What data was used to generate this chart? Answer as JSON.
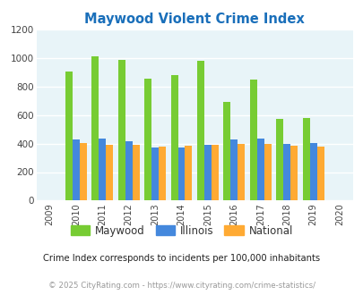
{
  "title": "Maywood Violent Crime Index",
  "years": [
    2009,
    2010,
    2011,
    2012,
    2013,
    2014,
    2015,
    2016,
    2017,
    2018,
    2019,
    2020
  ],
  "maywood": [
    null,
    905,
    1010,
    985,
    855,
    878,
    978,
    690,
    848,
    575,
    580,
    null
  ],
  "illinois": [
    null,
    430,
    432,
    415,
    375,
    375,
    393,
    430,
    438,
    400,
    405,
    null
  ],
  "national": [
    null,
    403,
    390,
    393,
    378,
    385,
    394,
    400,
    400,
    382,
    380,
    null
  ],
  "colors": {
    "maywood": "#77cc33",
    "illinois": "#4488dd",
    "national": "#ffaa33"
  },
  "ylim": [
    0,
    1200
  ],
  "yticks": [
    0,
    200,
    400,
    600,
    800,
    1000,
    1200
  ],
  "bg_color": "#e8f4f8",
  "title_color": "#1a6fba",
  "subtitle": "Crime Index corresponds to incidents per 100,000 inhabitants",
  "footer": "© 2025 CityRating.com - https://www.cityrating.com/crime-statistics/",
  "subtitle_color": "#222222",
  "footer_color": "#999999",
  "grid_color": "#ffffff",
  "bar_width": 0.27
}
